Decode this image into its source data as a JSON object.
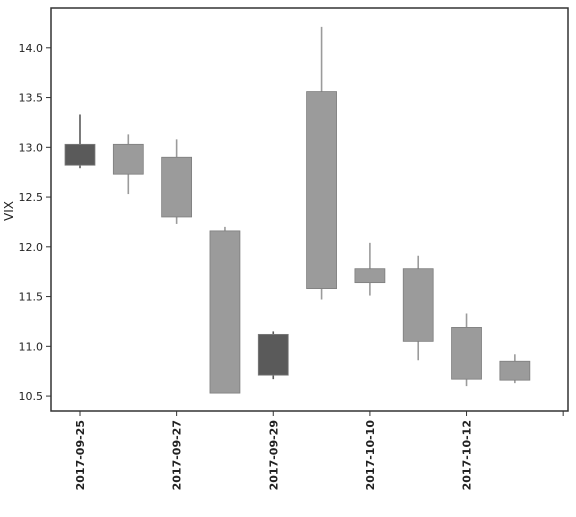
{
  "chart_data": {
    "type": "candlestick",
    "title": "",
    "xlabel": "",
    "ylabel": "VIX",
    "ylim": [
      10.35,
      14.4
    ],
    "yticks": [
      10.5,
      11.0,
      11.5,
      12.0,
      12.5,
      13.0,
      13.5,
      14.0
    ],
    "ytick_labels": [
      "10.5",
      "11.0",
      "11.5",
      "12.0",
      "12.5",
      "13.0",
      "13.5",
      "14.0"
    ],
    "xtick_labels": [
      "2017-09-25",
      "2017-09-27",
      "2017-09-29",
      "2017-10-10",
      "2017-10-12"
    ],
    "xtick_positions": [
      0,
      2,
      4,
      6,
      8
    ],
    "x_extent": [
      -0.6,
      10.1
    ],
    "grid": false,
    "colors": {
      "up": "#5a5a5a",
      "down": "#9b9b9b",
      "axis": "#333333"
    },
    "candles": [
      {
        "index": 0,
        "open": 12.82,
        "high": 13.33,
        "low": 12.79,
        "close": 13.03
      },
      {
        "index": 1,
        "open": 13.03,
        "high": 13.13,
        "low": 12.53,
        "close": 12.73
      },
      {
        "index": 2,
        "open": 12.9,
        "high": 13.08,
        "low": 12.23,
        "close": 12.3
      },
      {
        "index": 3,
        "open": 12.16,
        "high": 12.2,
        "low": 10.53,
        "close": 10.53
      },
      {
        "index": 4,
        "open": 10.71,
        "high": 11.15,
        "low": 10.67,
        "close": 11.12
      },
      {
        "index": 5,
        "open": 13.56,
        "high": 14.21,
        "low": 11.47,
        "close": 11.58
      },
      {
        "index": 6,
        "open": 11.78,
        "high": 12.04,
        "low": 11.51,
        "close": 11.64
      },
      {
        "index": 7,
        "open": 11.78,
        "high": 11.91,
        "low": 10.86,
        "close": 11.05
      },
      {
        "index": 8,
        "open": 11.19,
        "high": 11.33,
        "low": 10.6,
        "close": 10.67
      },
      {
        "index": 9,
        "open": 10.85,
        "high": 10.92,
        "low": 10.63,
        "close": 10.66
      }
    ]
  }
}
